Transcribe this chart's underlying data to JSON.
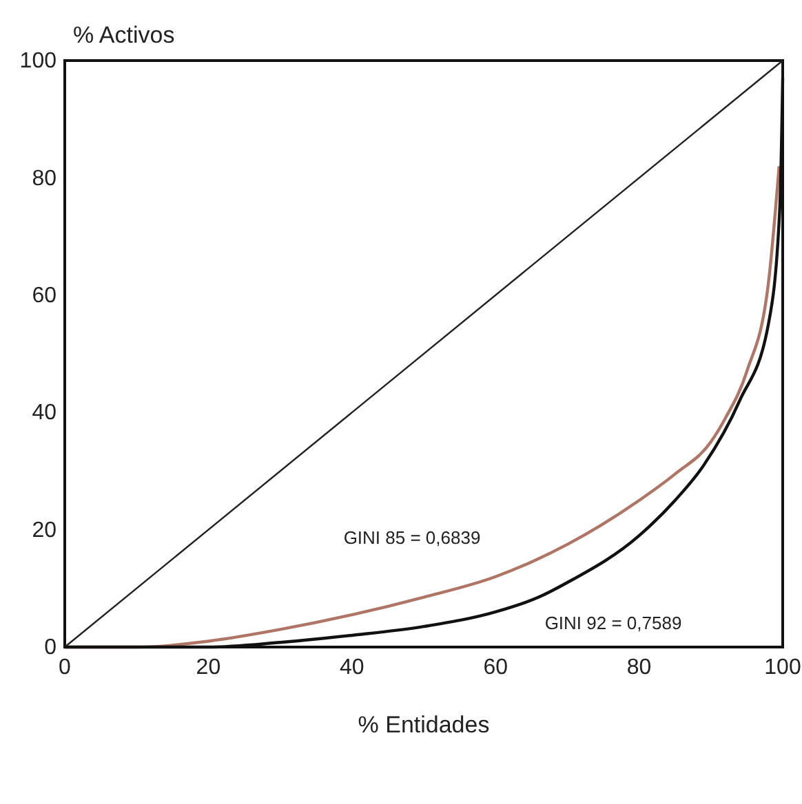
{
  "chart_data": {
    "type": "line",
    "xlabel": "% Entidades",
    "ylabel": "% Activos",
    "xlim": [
      0,
      100
    ],
    "ylim": [
      0,
      100
    ],
    "xticks": [
      0,
      20,
      40,
      60,
      80,
      100
    ],
    "yticks": [
      0,
      20,
      40,
      60,
      80,
      100
    ],
    "grid": false,
    "marker": "none",
    "line_style": "solid",
    "series": [
      {
        "color": "#222222",
        "x": [
          0,
          100
        ],
        "values": [
          0,
          100
        ]
      },
      {
        "color": "#b07565",
        "x": [
          0,
          10,
          20,
          30,
          40,
          50,
          60,
          65,
          70,
          80,
          85,
          90,
          92,
          95,
          98,
          99.5
        ],
        "values": [
          0,
          0,
          1,
          3,
          5.5,
          8.5,
          12,
          14.5,
          17.5,
          25,
          29.5,
          35,
          39,
          47,
          62,
          82
        ]
      },
      {
        "color": "#111111",
        "x": [
          0,
          20,
          30,
          40,
          50,
          60,
          66,
          70,
          80,
          85,
          89,
          94,
          98,
          99.6,
          100
        ],
        "values": [
          0,
          0,
          0.8,
          2,
          3.5,
          6,
          8.5,
          11,
          19,
          25,
          31,
          42,
          55,
          75,
          97
        ]
      }
    ],
    "annotations": [
      "GINI 85 = 0,6839",
      "GINI 92 = 0,7589"
    ]
  }
}
